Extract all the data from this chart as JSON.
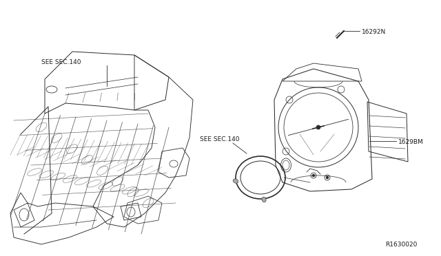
{
  "background_color": "#ffffff",
  "fig_width": 6.4,
  "fig_height": 3.72,
  "diagram_ref": "R1630020",
  "label_sec140_left": "SEE SEC.140",
  "label_sec140_center": "SEE SEC.140",
  "label_16292N": "16292N",
  "label_1629BM": "1629BM",
  "line_color": "#2a2a2a",
  "text_color": "#1a1a1a",
  "font_size_label": 6.5,
  "font_size_ref": 6.5
}
